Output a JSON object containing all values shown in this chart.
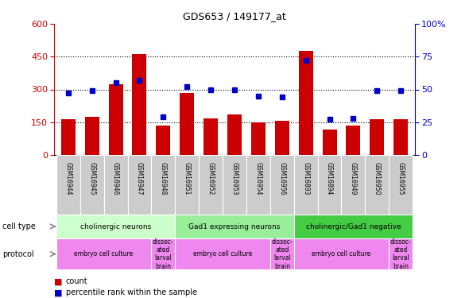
{
  "title": "GDS653 / 149177_at",
  "samples": [
    "GSM16944",
    "GSM16945",
    "GSM16946",
    "GSM16947",
    "GSM16948",
    "GSM16951",
    "GSM16952",
    "GSM16953",
    "GSM16954",
    "GSM16956",
    "GSM16893",
    "GSM16894",
    "GSM16949",
    "GSM16950",
    "GSM16955"
  ],
  "counts": [
    163,
    175,
    325,
    460,
    135,
    285,
    168,
    185,
    148,
    158,
    475,
    115,
    133,
    163,
    163
  ],
  "percentiles": [
    47,
    49,
    55,
    57,
    29,
    52,
    50,
    50,
    45,
    44,
    72,
    27,
    28,
    49,
    49
  ],
  "bar_color": "#cc0000",
  "dot_color": "#0000cc",
  "left_axis_color": "#cc0000",
  "right_axis_color": "#0000cc",
  "ylim_left": [
    0,
    600
  ],
  "ylim_right": [
    0,
    100
  ],
  "left_yticks": [
    0,
    150,
    300,
    450,
    600
  ],
  "right_yticks": [
    0,
    25,
    50,
    75,
    100
  ],
  "right_yticklabels": [
    "0",
    "25",
    "50",
    "75",
    "100%"
  ],
  "ct_colors": [
    "#ccffcc",
    "#99ee99",
    "#44cc44"
  ],
  "ct_ranges": [
    [
      0,
      5,
      "cholinergic neurons"
    ],
    [
      5,
      10,
      "Gad1 expressing neurons"
    ],
    [
      10,
      15,
      "cholinergic/Gad1 negative"
    ]
  ],
  "prot_color": "#ee88ee",
  "prot_ranges": [
    [
      0,
      4,
      "embryo cell culture"
    ],
    [
      4,
      5,
      "dissoc-\nated\nlarval\nbrain"
    ],
    [
      5,
      9,
      "embryo cell culture"
    ],
    [
      9,
      10,
      "dissoc-\nated\nlarval\nbrain"
    ],
    [
      10,
      14,
      "embryo cell culture"
    ],
    [
      14,
      15,
      "dissoc-\nated\nlarval\nbrain"
    ]
  ],
  "legend_count_color": "#cc0000",
  "legend_pct_color": "#0000cc",
  "background_color": "#ffffff",
  "tick_bg_color": "#cccccc",
  "grid_lines": [
    150,
    300,
    450
  ],
  "bar_width": 0.6
}
